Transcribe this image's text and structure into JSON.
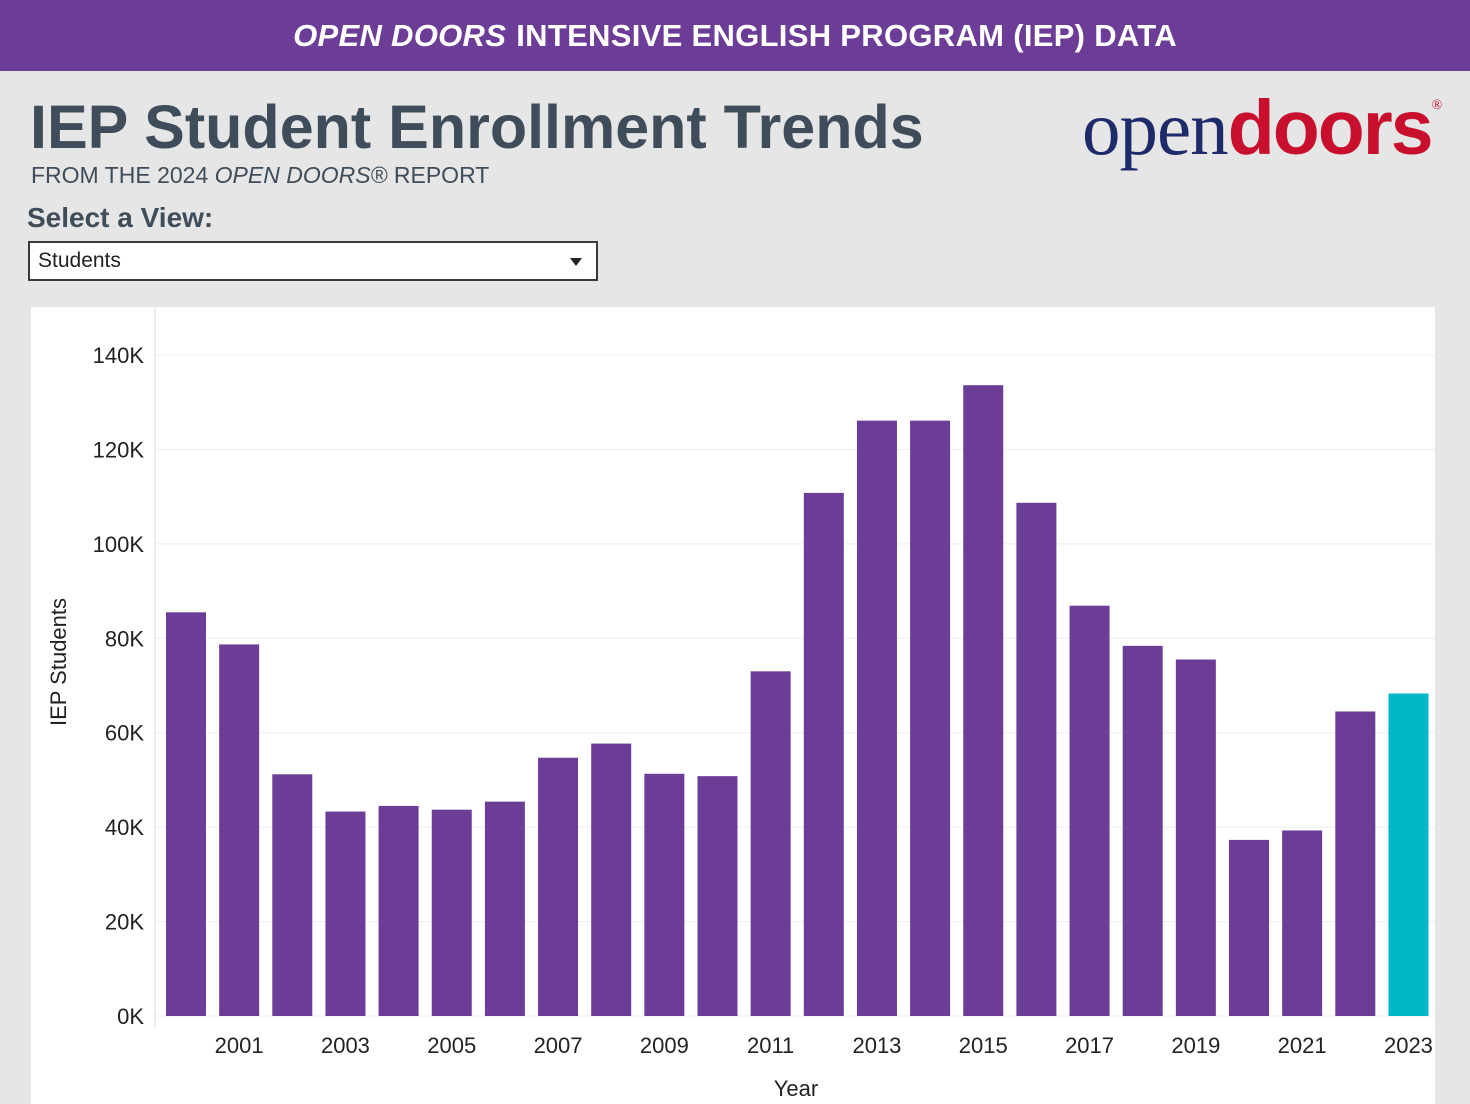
{
  "banner": {
    "title_italic": "OPEN DOORS",
    "title_rest": "INTENSIVE ENGLISH PROGRAM (IEP) DATA"
  },
  "header": {
    "title": "IEP Student Enrollment Trends",
    "subtitle_pre": "FROM THE 2024 ",
    "subtitle_italic": "OPEN DOORS®",
    "subtitle_post": " REPORT"
  },
  "logo": {
    "part1": "open",
    "part2": "doors",
    "reg": "®"
  },
  "view_selector": {
    "label": "Select a View:",
    "selected": "Students"
  },
  "colors": {
    "banner": "#6c3d96",
    "bar": "#6c3d96",
    "highlight": "#00b8c6"
  },
  "chart_data": {
    "type": "bar",
    "xlabel": "Year",
    "ylabel": "IEP Students",
    "ylim": [
      0,
      140000
    ],
    "y_ticks": [
      {
        "value": 0,
        "label": "0K"
      },
      {
        "value": 20000,
        "label": "20K"
      },
      {
        "value": 40000,
        "label": "40K"
      },
      {
        "value": 60000,
        "label": "60K"
      },
      {
        "value": 80000,
        "label": "80K"
      },
      {
        "value": 100000,
        "label": "100K"
      },
      {
        "value": 120000,
        "label": "120K"
      },
      {
        "value": 140000,
        "label": "140K"
      }
    ],
    "x_tick_labels": [
      "2001",
      "2003",
      "2005",
      "2007",
      "2009",
      "2011",
      "2013",
      "2015",
      "2017",
      "2019",
      "2021",
      "2023"
    ],
    "categories": [
      2000,
      2001,
      2002,
      2003,
      2004,
      2005,
      2006,
      2007,
      2008,
      2009,
      2010,
      2011,
      2012,
      2013,
      2014,
      2015,
      2016,
      2017,
      2018,
      2019,
      2020,
      2021,
      2022,
      2023
    ],
    "values": [
      85500,
      78700,
      51200,
      43300,
      44500,
      43700,
      45400,
      54700,
      57700,
      51300,
      50800,
      73000,
      110800,
      126100,
      126100,
      133600,
      108700,
      86900,
      78400,
      75500,
      37300,
      39300,
      64500,
      68300
    ],
    "highlight_category": 2023,
    "grid": true
  }
}
